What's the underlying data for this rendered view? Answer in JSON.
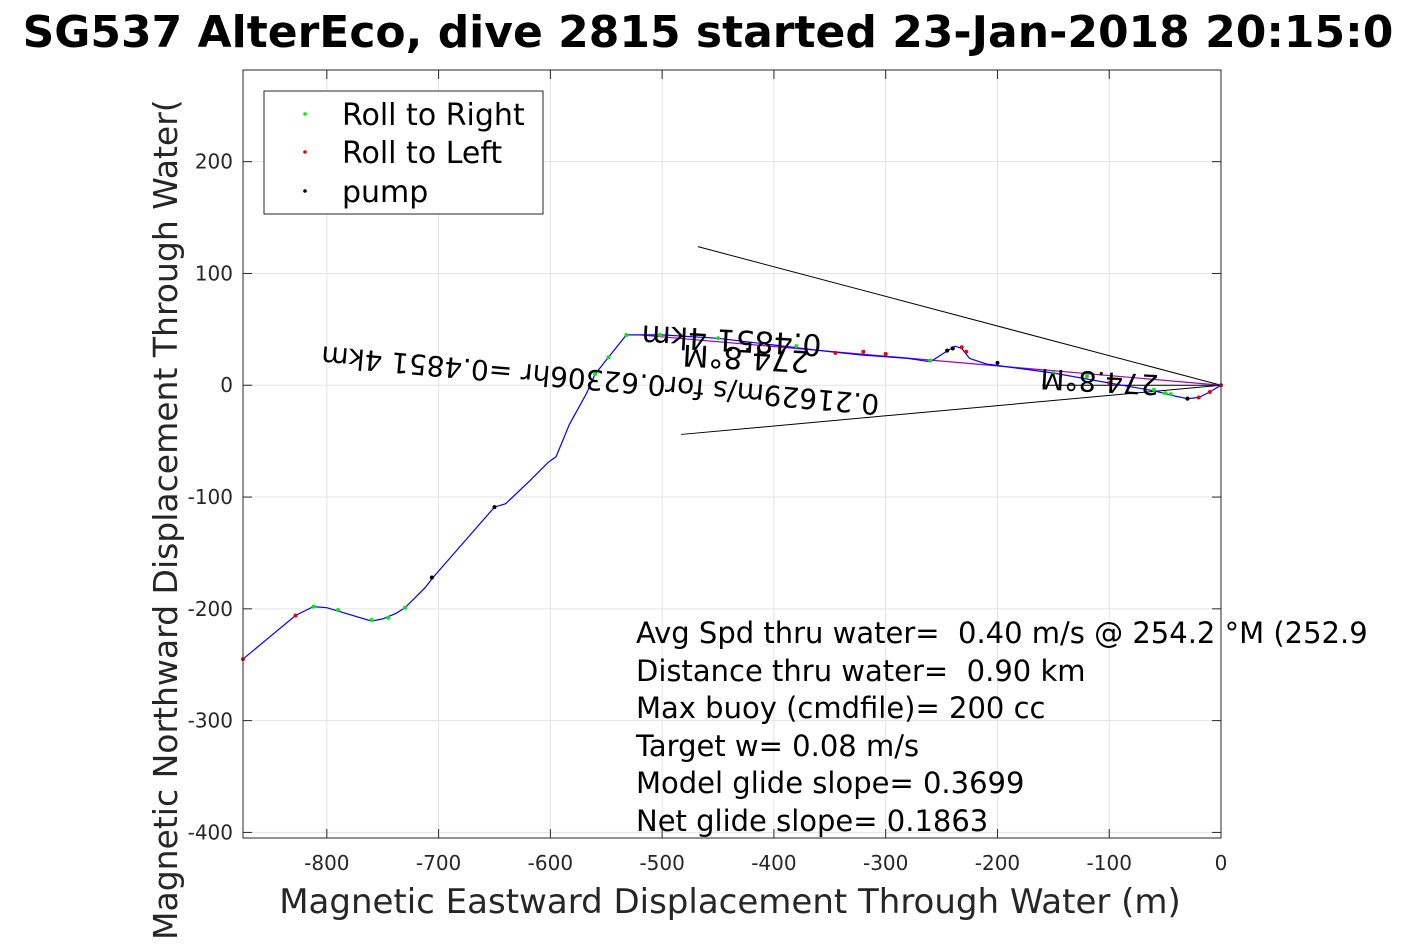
{
  "chart_data": {
    "type": "line",
    "title": "SG537 AlterEco, dive 2815 started 23-Jan-2018 20:15:0",
    "xlabel": "Magnetic Eastward Displacement Through Water (m)",
    "ylabel": "Magnetic Northward Displacement Through Water(",
    "xlim": [
      -875,
      0
    ],
    "ylim": [
      -405,
      282
    ],
    "xticks": [
      -800,
      -700,
      -600,
      -500,
      -400,
      -300,
      -200,
      -100,
      0
    ],
    "yticks": [
      200,
      100,
      0,
      -100,
      -200,
      -300,
      -400
    ],
    "xtick_labels": [
      "-800",
      "-700",
      "-600",
      "-500",
      "-400",
      "-300",
      "-200",
      "-100",
      "0"
    ],
    "ytick_labels": [
      "200",
      "100",
      "0",
      "-100",
      "-200",
      "-300",
      "-400"
    ],
    "grid": true,
    "legend_position": "top-left",
    "legend": [
      {
        "label": "Roll to Right",
        "color": "#00ee00"
      },
      {
        "label": "Roll to Left",
        "color": "#ee0000"
      },
      {
        "label": "pump",
        "color": "#000000"
      }
    ],
    "track_color": "#0000ff",
    "track": {
      "x": [
        -875,
        -828,
        -812,
        -800,
        -760,
        -750,
        -738,
        -730,
        -722,
        -712,
        -705,
        -650,
        -640,
        -618,
        -602,
        -595,
        -583,
        -568,
        -560,
        -548,
        -532,
        -520,
        -500,
        -450,
        -400,
        -350,
        -320,
        -280,
        -260,
        -246,
        -238,
        -232,
        -225,
        -210,
        -180,
        -150,
        -100,
        -60,
        -40,
        -30,
        -20,
        -10,
        0
      ],
      "y": [
        -245,
        -206,
        -198,
        -199,
        -211,
        -209,
        -204,
        -199,
        -191,
        -181,
        -172,
        -109,
        -106,
        -85,
        -69,
        -64,
        -35,
        -8,
        10,
        25,
        45,
        45,
        45,
        42,
        36,
        30,
        27,
        24,
        21,
        30,
        35,
        33,
        24,
        19,
        15,
        11,
        2,
        -5,
        -10,
        -12,
        -11,
        -6,
        0
      ]
    },
    "heading_line_color": "#aa00aa",
    "heading_line": {
      "x": [
        -520,
        0
      ],
      "y": [
        45,
        0
      ]
    },
    "wedge_lines": [
      {
        "x": [
          -468,
          0
        ],
        "y": [
          124,
          0
        ]
      },
      {
        "x": [
          -483,
          0
        ],
        "y": [
          -44,
          0
        ]
      },
      {
        "x": [
          -160,
          0
        ],
        "y": [
          0,
          0
        ]
      }
    ],
    "roll_right_points": {
      "x": [
        -812,
        -790,
        -760,
        -745,
        -730,
        -560,
        -548,
        -532,
        -502,
        -450,
        -380,
        -300,
        -260,
        -150,
        -120,
        -60,
        -50,
        -45
      ],
      "y": [
        -198,
        -201,
        -210,
        -208,
        -199,
        10,
        25,
        45,
        45,
        42,
        35,
        28,
        22,
        11,
        8,
        -4,
        -7,
        -8
      ]
    },
    "roll_left_points": {
      "x": [
        -875,
        -828,
        -345,
        -320,
        -300,
        -240,
        -232,
        -228,
        -100,
        -30,
        -20,
        -10,
        0
      ],
      "y": [
        -245,
        -206,
        29,
        30,
        28,
        33,
        34,
        30,
        2,
        -12,
        -11,
        -6,
        0
      ]
    },
    "pump_points": {
      "x": [
        -706,
        -650,
        -245,
        -240,
        -200,
        -30
      ],
      "y": [
        -172,
        -109,
        31,
        33,
        20,
        -12
      ]
    },
    "annotations": {
      "rotated_top": "0.4851 4km",
      "rotated_top_short": "274.8°M",
      "rotated_mid": "0.21629m/s for0.62306hr =0.4851 4km",
      "rotated_mid_short": "274.8°M"
    },
    "stats": [
      "Avg Spd thru water=  0.40 m/s @ 254.2 °M (252.9",
      "Distance thru water=  0.90 km",
      "Max buoy (cmdfile)= 200 cc",
      "Target w= 0.08 m/s",
      "Model glide slope= 0.3699",
      "Net glide slope= 0.1863"
    ]
  }
}
